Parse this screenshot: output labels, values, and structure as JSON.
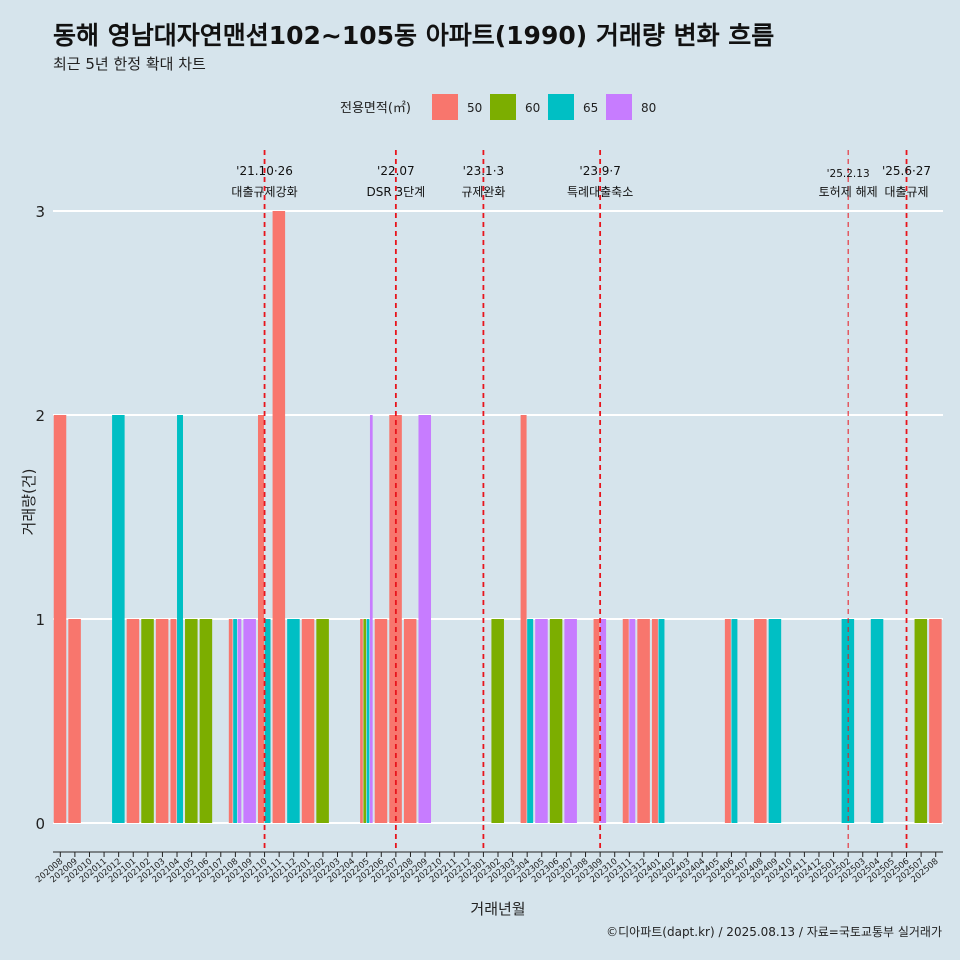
{
  "chart_data": {
    "type": "bar",
    "title": "동해 영남대자연맨션102~105동 아파트(1990) 거래량 변화 흐름",
    "subtitle": "최근 5년 한정 확대 차트",
    "xlabel": "거래년월",
    "ylabel": "거래량(건)",
    "ylim": [
      0,
      3
    ],
    "y_ticks": [
      0,
      1,
      2,
      3
    ],
    "grid": true,
    "legend": {
      "title": "전용면적(㎡)",
      "placement": "top",
      "entries": [
        "50",
        "60",
        "65",
        "80"
      ]
    },
    "colors": {
      "50": "#f8766d",
      "60": "#7cae00",
      "65": "#00bfc4",
      "80": "#c77cff"
    },
    "categories": [
      "202008",
      "202009",
      "202010",
      "202011",
      "202012",
      "202101",
      "202102",
      "202103",
      "202104",
      "202105",
      "202106",
      "202107",
      "202108",
      "202109",
      "202110",
      "202111",
      "202112",
      "202201",
      "202202",
      "202203",
      "202204",
      "202205",
      "202206",
      "202207",
      "202208",
      "202209",
      "202210",
      "202211",
      "202212",
      "202301",
      "202302",
      "202303",
      "202304",
      "202305",
      "202306",
      "202307",
      "202308",
      "202309",
      "202310",
      "202311",
      "202312",
      "202401",
      "202402",
      "202403",
      "202404",
      "202405",
      "202406",
      "202407",
      "202408",
      "202409",
      "202410",
      "202411",
      "202412",
      "202501",
      "202502",
      "202503",
      "202504",
      "202505",
      "202506",
      "202507",
      "202508"
    ],
    "series": [
      {
        "name": "50",
        "points": [
          {
            "x": "202008",
            "y": 2
          },
          {
            "x": "202009",
            "y": 1
          },
          {
            "x": "202101",
            "y": 1
          },
          {
            "x": "202103",
            "y": 1
          },
          {
            "x": "202104",
            "y": 1
          },
          {
            "x": "202108",
            "y": 1
          },
          {
            "x": "202110",
            "y": 2
          },
          {
            "x": "202111",
            "y": 3
          },
          {
            "x": "202201",
            "y": 1
          },
          {
            "x": "202205",
            "y": 1
          },
          {
            "x": "202206",
            "y": 1
          },
          {
            "x": "202207",
            "y": 2
          },
          {
            "x": "202208",
            "y": 1
          },
          {
            "x": "202304",
            "y": 2
          },
          {
            "x": "202309",
            "y": 1
          },
          {
            "x": "202311",
            "y": 1
          },
          {
            "x": "202312",
            "y": 1
          },
          {
            "x": "202401",
            "y": 1
          },
          {
            "x": "202406",
            "y": 1
          },
          {
            "x": "202408",
            "y": 1
          },
          {
            "x": "202508",
            "y": 1
          }
        ]
      },
      {
        "name": "60",
        "points": [
          {
            "x": "202102",
            "y": 1
          },
          {
            "x": "202105",
            "y": 1
          },
          {
            "x": "202106",
            "y": 1
          },
          {
            "x": "202202",
            "y": 1
          },
          {
            "x": "202205",
            "y": 1
          },
          {
            "x": "202302",
            "y": 1
          },
          {
            "x": "202306",
            "y": 1
          },
          {
            "x": "202507",
            "y": 1
          }
        ]
      },
      {
        "name": "65",
        "points": [
          {
            "x": "202012",
            "y": 2
          },
          {
            "x": "202104",
            "y": 2
          },
          {
            "x": "202108",
            "y": 1
          },
          {
            "x": "202110",
            "y": 1
          },
          {
            "x": "202112",
            "y": 1
          },
          {
            "x": "202205",
            "y": 1
          },
          {
            "x": "202304",
            "y": 1
          },
          {
            "x": "202401",
            "y": 1
          },
          {
            "x": "202406",
            "y": 1
          },
          {
            "x": "202409",
            "y": 1
          },
          {
            "x": "202502",
            "y": 1
          },
          {
            "x": "202504",
            "y": 1
          }
        ]
      },
      {
        "name": "80",
        "points": [
          {
            "x": "202108",
            "y": 1
          },
          {
            "x": "202109",
            "y": 1
          },
          {
            "x": "202205",
            "y": 2
          },
          {
            "x": "202209",
            "y": 2
          },
          {
            "x": "202305",
            "y": 1
          },
          {
            "x": "202307",
            "y": 1
          },
          {
            "x": "202309",
            "y": 1
          },
          {
            "x": "202311",
            "y": 1
          }
        ]
      }
    ],
    "events": [
      {
        "x": "202110",
        "label_date": "'21.10·26",
        "label_text": "대출규제강화",
        "style": "bold"
      },
      {
        "x": "202207",
        "label_date": "'22.07",
        "label_text": "DSR 3단계",
        "style": "bold"
      },
      {
        "x": "202301",
        "label_date": "'23.1·3",
        "label_text": "규제완화",
        "style": "bold"
      },
      {
        "x": "202309",
        "label_date": "'23.9·7",
        "label_text": "특례대출축소",
        "style": "bold"
      },
      {
        "x": "202502",
        "label_date": "'25.2.13",
        "label_text": "토허제 해제",
        "style": "thin"
      },
      {
        "x": "202506",
        "label_date": "'25.6·27",
        "label_text": "대출규제",
        "style": "bold"
      }
    ],
    "caption": "©디아파트(dapt.kr) / 2025.08.13 / 자료=국토교통부 실거래가"
  }
}
